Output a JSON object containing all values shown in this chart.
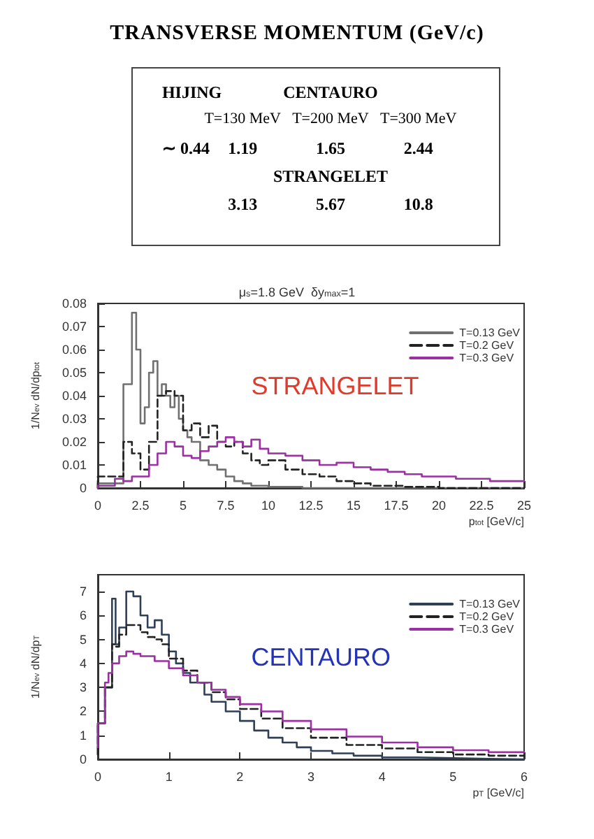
{
  "chart_data": [
    {
      "type": "other",
      "title": "TRANSVERSE MOMENTUM (GeV/c)",
      "annotations": [
        "HIJING",
        "CENTAURO",
        "T=130 MeV",
        "T=200 MeV",
        "T=300 MeV",
        "∼ 0.44",
        "1.19",
        "1.65",
        "2.44",
        "STRANGELET",
        "3.13",
        "5.67",
        "10.8"
      ]
    },
    {
      "type": "step",
      "title": "μ$_{s}$=1.8 GeV  δy$_{max}$=1",
      "xlabel": "p$_{tot}$ [GeV/c]",
      "ylabel": "1/N$_{ev}$ dN/dp$_{tot}$",
      "xlim": [
        0,
        25
      ],
      "xticks": [
        0,
        2.5,
        5,
        7.5,
        10,
        12.5,
        15,
        17.5,
        20,
        22.5,
        25
      ],
      "ylim": [
        0,
        0.08
      ],
      "yticks": [
        0,
        0.01,
        0.02,
        0.03,
        0.04,
        0.05,
        0.06,
        0.07,
        0.08
      ],
      "grid": false,
      "legend": "top right",
      "marker": "none",
      "annotations": [
        "STRANGELET"
      ],
      "series": [
        {
          "name": "T=0.13 GeV",
          "color": "#707070",
          "line_style": "solid",
          "x": [
            0,
            1.5,
            2,
            2.25,
            2.5,
            2.75,
            3,
            3.25,
            3.5,
            3.75,
            4,
            4.25,
            4.5,
            4.75,
            5,
            5.25,
            5.5,
            6,
            6.5,
            7,
            7.5,
            8,
            8.5,
            9,
            10,
            12,
            14,
            25
          ],
          "values": [
            0,
            0.002,
            0.045,
            0.076,
            0.06,
            0.028,
            0.035,
            0.05,
            0.055,
            0.04,
            0.045,
            0.04,
            0.035,
            0.04,
            0.03,
            0.025,
            0.022,
            0.02,
            0.012,
            0.01,
            0.008,
            0.005,
            0.003,
            0.002,
            0.001,
            0.0005,
            0,
            0
          ]
        },
        {
          "name": "T=0.2 GeV",
          "color": "#222222",
          "line_style": "dashed",
          "x": [
            0,
            1.5,
            2,
            2.5,
            3,
            3.5,
            4,
            4.5,
            5,
            5.5,
            6,
            6.5,
            7,
            7.5,
            8,
            8.5,
            9,
            9.5,
            10,
            11,
            12,
            13,
            14,
            15,
            16,
            18,
            20,
            25
          ],
          "values": [
            0,
            0.005,
            0.02,
            0.015,
            0.008,
            0.02,
            0.04,
            0.042,
            0.04,
            0.025,
            0.028,
            0.022,
            0.027,
            0.02,
            0.018,
            0.02,
            0.015,
            0.012,
            0.01,
            0.012,
            0.008,
            0.006,
            0.005,
            0.003,
            0.002,
            0.001,
            0.0005,
            0
          ]
        },
        {
          "name": "T=0.3 GeV",
          "color": "#9b2fa3",
          "line_style": "solid",
          "x": [
            0,
            1,
            1.5,
            2,
            3,
            3.5,
            4,
            4.5,
            5,
            5.5,
            6,
            6.5,
            7,
            7.5,
            8,
            8.5,
            9,
            9.5,
            10,
            11,
            12,
            13,
            14,
            15,
            16,
            17,
            18,
            19,
            20,
            21,
            22,
            23,
            24,
            25
          ],
          "values": [
            0,
            0.001,
            0.004,
            0.003,
            0.005,
            0.01,
            0.015,
            0.02,
            0.018,
            0.014,
            0.013,
            0.016,
            0.018,
            0.02,
            0.022,
            0.02,
            0.018,
            0.021,
            0.017,
            0.015,
            0.014,
            0.012,
            0.01,
            0.011,
            0.009,
            0.008,
            0.007,
            0.006,
            0.005,
            0.005,
            0.004,
            0.004,
            0.003,
            0.003
          ]
        }
      ]
    },
    {
      "type": "step",
      "xlabel": "p$_{T}$ [GeV/c]",
      "ylabel": "1/N$_{ev}$ dN/dp$_{T}$",
      "xlim": [
        0,
        6
      ],
      "xticks": [
        0,
        1,
        2,
        3,
        4,
        5,
        6
      ],
      "ylim": [
        0,
        7.7
      ],
      "yticks": [
        0,
        1,
        2,
        3,
        4,
        5,
        6,
        7
      ],
      "grid": false,
      "legend": "top right",
      "marker": "none",
      "annotations": [
        "CENTAURO"
      ],
      "series": [
        {
          "name": "T=0.13 GeV",
          "color": "#2f3f55",
          "line_style": "solid",
          "x": [
            0,
            0.1,
            0.2,
            0.25,
            0.3,
            0.4,
            0.5,
            0.6,
            0.7,
            0.8,
            0.9,
            1,
            1.1,
            1.2,
            1.3,
            1.5,
            1.6,
            1.8,
            2,
            2.2,
            2.4,
            2.6,
            2.8,
            3,
            3.3,
            3.6,
            4,
            4.5,
            5,
            5.5,
            6
          ],
          "values": [
            0.2,
            1.5,
            3,
            6.7,
            4.8,
            5.5,
            7,
            6.8,
            6,
            5.5,
            5.8,
            5.2,
            4.5,
            4,
            3.6,
            3.2,
            2.7,
            2.4,
            2,
            1.6,
            1.2,
            0.9,
            0.7,
            0.5,
            0.35,
            0.25,
            0.15,
            0.08,
            0.05,
            0.02,
            0
          ]
        },
        {
          "name": "T=0.2 GeV",
          "color": "#222222",
          "line_style": "dashed",
          "x": [
            0,
            0.1,
            0.2,
            0.25,
            0.3,
            0.4,
            0.5,
            0.6,
            0.7,
            0.8,
            0.9,
            1,
            1.2,
            1.4,
            1.6,
            1.8,
            2,
            2.3,
            2.6,
            3,
            3.5,
            4,
            4.5,
            5,
            5.5,
            6
          ],
          "values": [
            0.2,
            1.5,
            3,
            4.8,
            4.7,
            5.2,
            5.6,
            5.6,
            5.3,
            5.1,
            5,
            4.8,
            4.2,
            3.7,
            3.2,
            2.8,
            2.5,
            2.1,
            1.7,
            1.3,
            0.9,
            0.6,
            0.45,
            0.3,
            0.2,
            0.15
          ]
        },
        {
          "name": "T=0.3 GeV",
          "color": "#9b2fa3",
          "line_style": "solid",
          "x": [
            0,
            0.1,
            0.15,
            0.2,
            0.3,
            0.4,
            0.5,
            0.6,
            0.8,
            1,
            1.2,
            1.4,
            1.6,
            1.8,
            2,
            2.3,
            2.6,
            3,
            3.5,
            4,
            4.5,
            5,
            5.5,
            6
          ],
          "values": [
            0.5,
            1.5,
            3.2,
            3.6,
            4,
            4.3,
            4.5,
            4.4,
            4.3,
            4.1,
            3.8,
            3.5,
            3.2,
            2.9,
            2.6,
            2.3,
            2,
            1.6,
            1.25,
            0.95,
            0.7,
            0.5,
            0.38,
            0.3
          ]
        }
      ]
    }
  ]
}
